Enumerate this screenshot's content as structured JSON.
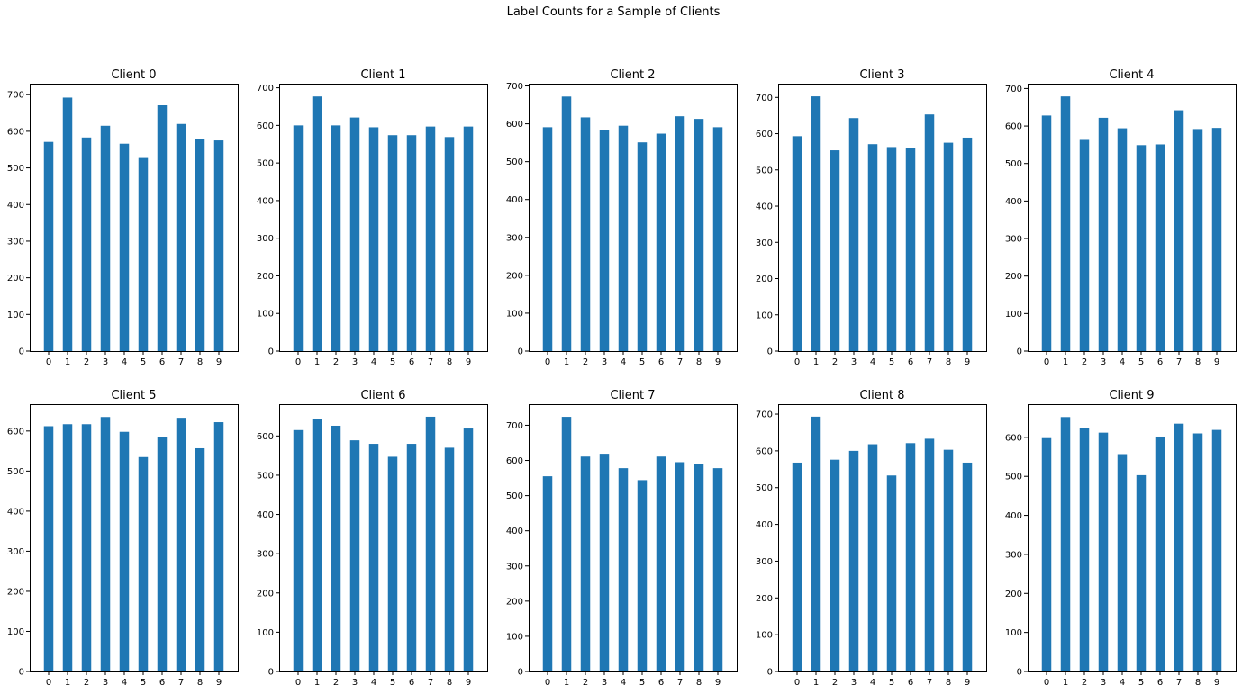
{
  "figure": {
    "title": "Label Counts for a Sample of Clients"
  },
  "chart_data": [
    {
      "type": "bar",
      "title": "Client 0",
      "categories": [
        "0",
        "1",
        "2",
        "3",
        "4",
        "5",
        "6",
        "7",
        "8",
        "9"
      ],
      "values": [
        571,
        692,
        583,
        615,
        566,
        527,
        671,
        620,
        578,
        575
      ],
      "ylim": [
        0,
        730
      ],
      "yticks": [
        0,
        100,
        200,
        300,
        400,
        500,
        600,
        700
      ],
      "color": "#1f77b4",
      "grid": false
    },
    {
      "type": "bar",
      "title": "Client 1",
      "categories": [
        "0",
        "1",
        "2",
        "3",
        "4",
        "5",
        "6",
        "7",
        "8",
        "9"
      ],
      "values": [
        600,
        677,
        600,
        621,
        595,
        574,
        574,
        597,
        569,
        597
      ],
      "ylim": [
        0,
        711
      ],
      "yticks": [
        0,
        100,
        200,
        300,
        400,
        500,
        600,
        700
      ],
      "color": "#1f77b4",
      "grid": false
    },
    {
      "type": "bar",
      "title": "Client 2",
      "categories": [
        "0",
        "1",
        "2",
        "3",
        "4",
        "5",
        "6",
        "7",
        "8",
        "9"
      ],
      "values": [
        591,
        672,
        617,
        584,
        595,
        551,
        574,
        620,
        613,
        591
      ],
      "ylim": [
        0,
        706
      ],
      "yticks": [
        0,
        100,
        200,
        300,
        400,
        500,
        600,
        700
      ],
      "color": "#1f77b4",
      "grid": false
    },
    {
      "type": "bar",
      "title": "Client 3",
      "categories": [
        "0",
        "1",
        "2",
        "3",
        "4",
        "5",
        "6",
        "7",
        "8",
        "9"
      ],
      "values": [
        593,
        703,
        554,
        643,
        571,
        563,
        560,
        653,
        575,
        589
      ],
      "ylim": [
        0,
        738
      ],
      "yticks": [
        0,
        100,
        200,
        300,
        400,
        500,
        600,
        700
      ],
      "color": "#1f77b4",
      "grid": false
    },
    {
      "type": "bar",
      "title": "Client 4",
      "categories": [
        "0",
        "1",
        "2",
        "3",
        "4",
        "5",
        "6",
        "7",
        "8",
        "9"
      ],
      "values": [
        628,
        679,
        563,
        622,
        594,
        549,
        551,
        642,
        592,
        595
      ],
      "ylim": [
        0,
        713
      ],
      "yticks": [
        0,
        100,
        200,
        300,
        400,
        500,
        600,
        700
      ],
      "color": "#1f77b4",
      "grid": false
    },
    {
      "type": "bar",
      "title": "Client 5",
      "categories": [
        "0",
        "1",
        "2",
        "3",
        "4",
        "5",
        "6",
        "7",
        "8",
        "9"
      ],
      "values": [
        612,
        617,
        617,
        635,
        598,
        535,
        585,
        633,
        557,
        622
      ],
      "ylim": [
        0,
        667
      ],
      "yticks": [
        0,
        100,
        200,
        300,
        400,
        500,
        600
      ],
      "color": "#1f77b4",
      "grid": false
    },
    {
      "type": "bar",
      "title": "Client 6",
      "categories": [
        "0",
        "1",
        "2",
        "3",
        "4",
        "5",
        "6",
        "7",
        "8",
        "9"
      ],
      "values": [
        615,
        644,
        626,
        589,
        580,
        547,
        580,
        649,
        570,
        619
      ],
      "ylim": [
        0,
        681
      ],
      "yticks": [
        0,
        100,
        200,
        300,
        400,
        500,
        600
      ],
      "color": "#1f77b4",
      "grid": false
    },
    {
      "type": "bar",
      "title": "Client 7",
      "categories": [
        "0",
        "1",
        "2",
        "3",
        "4",
        "5",
        "6",
        "7",
        "8",
        "9"
      ],
      "values": [
        555,
        724,
        611,
        619,
        578,
        544,
        611,
        595,
        591,
        578
      ],
      "ylim": [
        0,
        760
      ],
      "yticks": [
        0,
        100,
        200,
        300,
        400,
        500,
        600,
        700
      ],
      "color": "#1f77b4",
      "grid": false
    },
    {
      "type": "bar",
      "title": "Client 8",
      "categories": [
        "0",
        "1",
        "2",
        "3",
        "4",
        "5",
        "6",
        "7",
        "8",
        "9"
      ],
      "values": [
        568,
        693,
        576,
        600,
        618,
        533,
        621,
        633,
        603,
        568
      ],
      "ylim": [
        0,
        727
      ],
      "yticks": [
        0,
        100,
        200,
        300,
        400,
        500,
        600,
        700
      ],
      "color": "#1f77b4",
      "grid": false
    },
    {
      "type": "bar",
      "title": "Client 9",
      "categories": [
        "0",
        "1",
        "2",
        "3",
        "4",
        "5",
        "6",
        "7",
        "8",
        "9"
      ],
      "values": [
        598,
        652,
        624,
        612,
        557,
        503,
        602,
        635,
        610,
        619
      ],
      "ylim": [
        0,
        685
      ],
      "yticks": [
        0,
        100,
        200,
        300,
        400,
        500,
        600
      ],
      "color": "#1f77b4",
      "grid": false
    }
  ]
}
